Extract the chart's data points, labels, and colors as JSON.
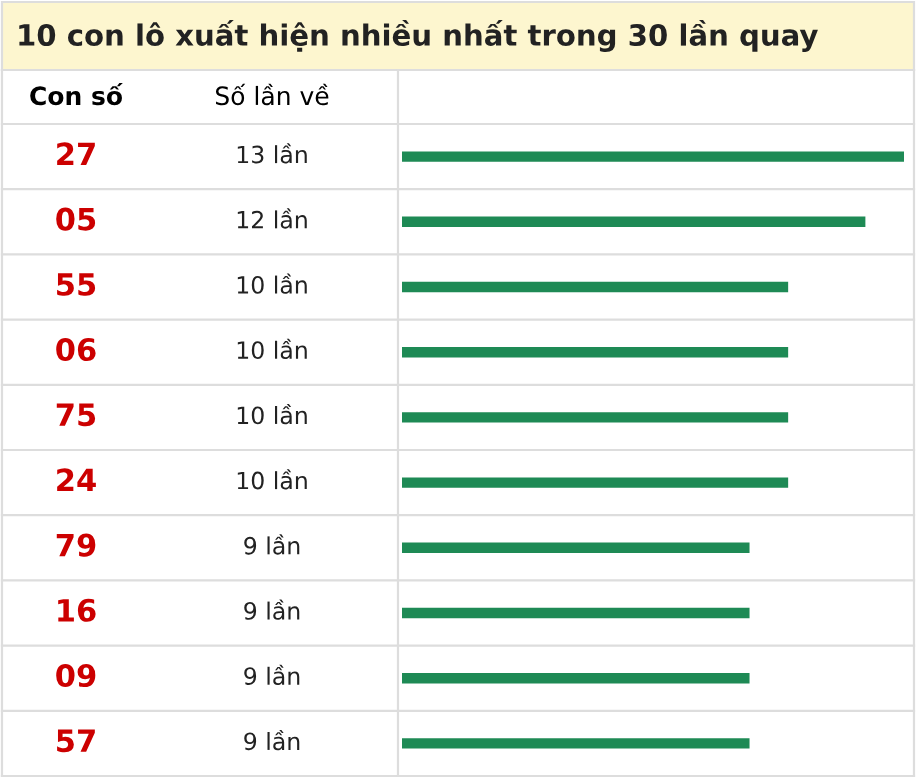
{
  "chart_data": {
    "type": "bar",
    "orientation": "horizontal",
    "title": "10 con lô xuất hiện nhiều nhất trong 30 lần quay",
    "ylabel": "Con số",
    "xlabel": "Số lần về",
    "categories": [
      "27",
      "05",
      "55",
      "06",
      "75",
      "24",
      "79",
      "16",
      "09",
      "57"
    ],
    "values": [
      13,
      12,
      10,
      10,
      10,
      10,
      9,
      9,
      9,
      9
    ],
    "value_labels": [
      "13 lần",
      "12 lần",
      "10 lần",
      "10 lần",
      "10 lần",
      "10 lần",
      "9 lần",
      "9 lần",
      "9 lần",
      "9 lần"
    ],
    "color": "#1e8a55",
    "xlim": [
      0,
      13
    ]
  }
}
